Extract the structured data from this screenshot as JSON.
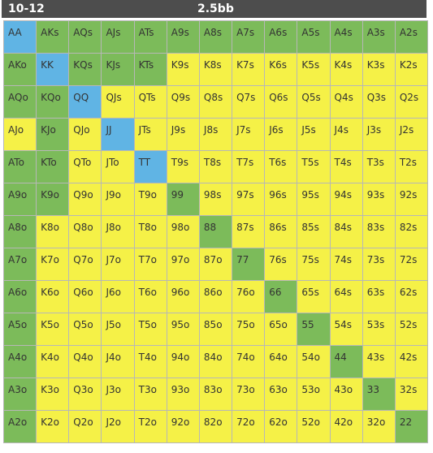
{
  "header": {
    "range": "10-12",
    "size": "2.5bb"
  },
  "colors": {
    "yellow": "#f5f147",
    "green": "#7cbb5a",
    "blue": "#60b4e4"
  },
  "grid": {
    "hands": [
      [
        "AA",
        "AKs",
        "AQs",
        "AJs",
        "ATs",
        "A9s",
        "A8s",
        "A7s",
        "A6s",
        "A5s",
        "A4s",
        "A3s",
        "A2s"
      ],
      [
        "AKo",
        "KK",
        "KQs",
        "KJs",
        "KTs",
        "K9s",
        "K8s",
        "K7s",
        "K6s",
        "K5s",
        "K4s",
        "K3s",
        "K2s"
      ],
      [
        "AQo",
        "KQo",
        "QQ",
        "QJs",
        "QTs",
        "Q9s",
        "Q8s",
        "Q7s",
        "Q6s",
        "Q5s",
        "Q4s",
        "Q3s",
        "Q2s"
      ],
      [
        "AJo",
        "KJo",
        "QJo",
        "JJ",
        "JTs",
        "J9s",
        "J8s",
        "J7s",
        "J6s",
        "J5s",
        "J4s",
        "J3s",
        "J2s"
      ],
      [
        "ATo",
        "KTo",
        "QTo",
        "JTo",
        "TT",
        "T9s",
        "T8s",
        "T7s",
        "T6s",
        "T5s",
        "T4s",
        "T3s",
        "T2s"
      ],
      [
        "A9o",
        "K9o",
        "Q9o",
        "J9o",
        "T9o",
        "99",
        "98s",
        "97s",
        "96s",
        "95s",
        "94s",
        "93s",
        "92s"
      ],
      [
        "A8o",
        "K8o",
        "Q8o",
        "J8o",
        "T8o",
        "98o",
        "88",
        "87s",
        "86s",
        "85s",
        "84s",
        "83s",
        "82s"
      ],
      [
        "A7o",
        "K7o",
        "Q7o",
        "J7o",
        "T7o",
        "97o",
        "87o",
        "77",
        "76s",
        "75s",
        "74s",
        "73s",
        "72s"
      ],
      [
        "A6o",
        "K6o",
        "Q6o",
        "J6o",
        "T6o",
        "96o",
        "86o",
        "76o",
        "66",
        "65s",
        "64s",
        "63s",
        "62s"
      ],
      [
        "A5o",
        "K5o",
        "Q5o",
        "J5o",
        "T5o",
        "95o",
        "85o",
        "75o",
        "65o",
        "55",
        "54s",
        "53s",
        "52s"
      ],
      [
        "A4o",
        "K4o",
        "Q4o",
        "J4o",
        "T4o",
        "94o",
        "84o",
        "74o",
        "64o",
        "54o",
        "44",
        "43s",
        "42s"
      ],
      [
        "A3o",
        "K3o",
        "Q3o",
        "J3o",
        "T3o",
        "93o",
        "83o",
        "73o",
        "63o",
        "53o",
        "43o",
        "33",
        "32s"
      ],
      [
        "A2o",
        "K2o",
        "Q2o",
        "J2o",
        "T2o",
        "92o",
        "82o",
        "72o",
        "62o",
        "52o",
        "42o",
        "32o",
        "22"
      ]
    ],
    "colors": [
      "BGGGGGGGGGGGG",
      "GBGGGYYYYYYYY",
      "GGBYYYYYYYYYY",
      "YGYBYYYYYYYYY",
      "GGYYBYYYYYYYY",
      "GGYYYGYYYYYYY",
      "GYYYYYGYYYYYY",
      "GYYYYYYGYYYYY",
      "GYYYYYYYGYYYY",
      "GYYYYYYYYGYYY",
      "GYYYYYYYYYGYY",
      "GYYYYYYYYYYGY",
      "GYYYYYYYYYYYG"
    ]
  }
}
